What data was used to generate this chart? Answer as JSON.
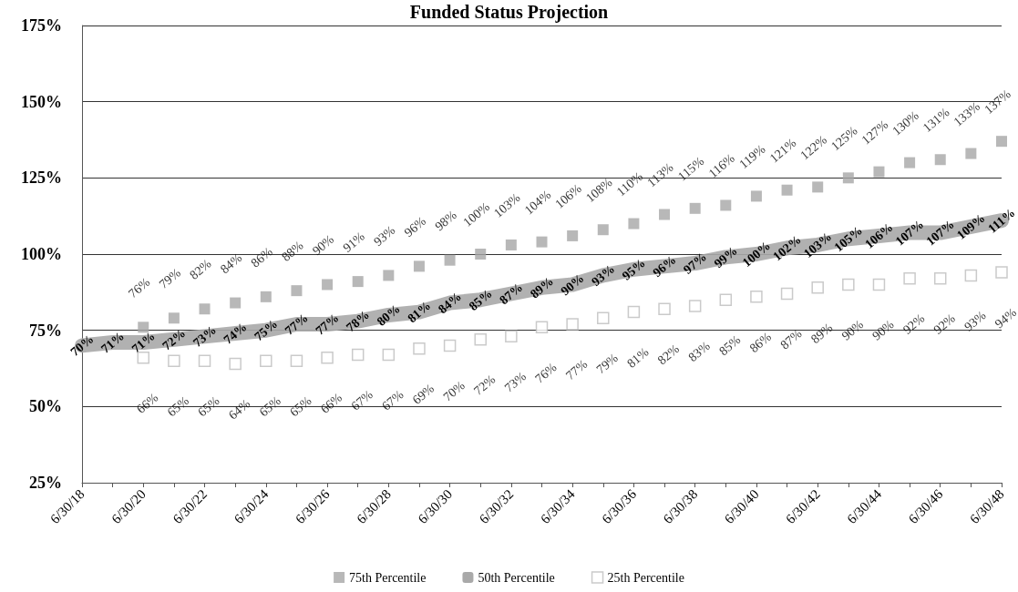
{
  "chart_data": {
    "type": "line",
    "title": "Funded Status Projection",
    "categories": [
      "6/30/18",
      null,
      "6/30/20",
      null,
      "6/30/22",
      null,
      "6/30/24",
      null,
      "6/30/26",
      null,
      "6/30/28",
      null,
      "6/30/30",
      null,
      "6/30/32",
      null,
      "6/30/34",
      null,
      "6/30/36",
      null,
      "6/30/38",
      null,
      "6/30/40",
      null,
      "6/30/42",
      null,
      "6/30/44",
      null,
      "6/30/46",
      null,
      "6/30/48"
    ],
    "series": [
      {
        "name": "75th Percentile",
        "type": "scatter",
        "marker": "square",
        "color": "#a6a6a6",
        "values": [
          null,
          null,
          76,
          79,
          82,
          84,
          86,
          88,
          90,
          91,
          93,
          96,
          98,
          100,
          103,
          104,
          106,
          108,
          110,
          113,
          115,
          116,
          119,
          121,
          122,
          125,
          127,
          130,
          131,
          133,
          137
        ],
        "value_labels": [
          null,
          null,
          "76%",
          "79%",
          "82%",
          "84%",
          "86%",
          "88%",
          "90%",
          "91%",
          "93%",
          "96%",
          "98%",
          "100%",
          "103%",
          "104%",
          "106%",
          "108%",
          "110%",
          "113%",
          "115%",
          "116%",
          "119%",
          "121%",
          "122%",
          "125%",
          "127%",
          "130%",
          "131%",
          "133%",
          "137%"
        ]
      },
      {
        "name": "50th Percentile",
        "marker": "none",
        "color": "#a9a9a9",
        "values": [
          70,
          71,
          71,
          72,
          73,
          74,
          75,
          77,
          77,
          78,
          80,
          81,
          84,
          85,
          87,
          89,
          90,
          93,
          95,
          96,
          97,
          99,
          100,
          102,
          103,
          105,
          106,
          107,
          107,
          109,
          111
        ],
        "value_labels": [
          "70%",
          "71%",
          "71%",
          "72%",
          "73%",
          "74%",
          "75%",
          "77%",
          "77%",
          "78%",
          "80%",
          "81%",
          "84%",
          "85%",
          "87%",
          "89%",
          "90%",
          "93%",
          "95%",
          "96%",
          "97%",
          "99%",
          "100%",
          "102%",
          "103%",
          "105%",
          "106%",
          "107%",
          "107%",
          "109%",
          "111%"
        ]
      },
      {
        "name": "25th Percentile",
        "type": "scatter",
        "marker": "square",
        "color": "#bdbdbd",
        "values": [
          null,
          null,
          66,
          65,
          65,
          64,
          65,
          65,
          66,
          67,
          67,
          69,
          70,
          72,
          73,
          76,
          77,
          79,
          81,
          82,
          83,
          85,
          86,
          87,
          89,
          90,
          90,
          92,
          92,
          93,
          94
        ],
        "value_labels": [
          null,
          null,
          "66%",
          "65%",
          "65%",
          "64%",
          "65%",
          "65%",
          "66%",
          "67%",
          "67%",
          "69%",
          "70%",
          "72%",
          "73%",
          "76%",
          "77%",
          "79%",
          "81%",
          "82%",
          "83%",
          "85%",
          "86%",
          "87%",
          "89%",
          "90%",
          "90%",
          "92%",
          "92%",
          "93%",
          "94%"
        ]
      }
    ],
    "ylim": [
      25,
      175
    ],
    "yticks": [
      {
        "value": 25,
        "label": "25%"
      },
      {
        "value": 50,
        "label": "50%"
      },
      {
        "value": 75,
        "label": "75%"
      },
      {
        "value": 100,
        "label": "100%"
      },
      {
        "value": 125,
        "label": "125%"
      },
      {
        "value": 150,
        "label": "150%"
      },
      {
        "value": 175,
        "label": "175%"
      }
    ],
    "grid": "y",
    "legend": "bottom"
  }
}
